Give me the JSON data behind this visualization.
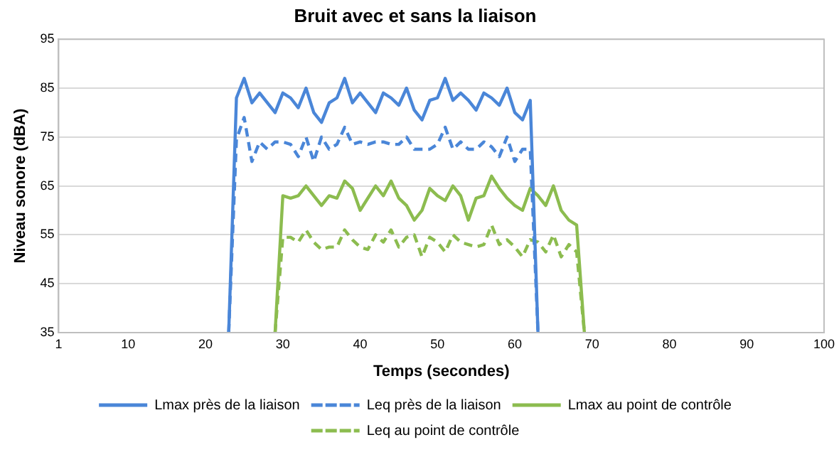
{
  "chart_data": {
    "type": "line",
    "title": "Bruit avec et sans la liaison",
    "xlabel": "Temps (secondes)",
    "ylabel": "Niveau sonore (dBA)",
    "xlim": [
      1,
      100
    ],
    "xticks": [
      1,
      10,
      20,
      30,
      40,
      50,
      60,
      70,
      80,
      90,
      100
    ],
    "ylim": [
      35,
      95
    ],
    "yticks": [
      35,
      45,
      55,
      65,
      75,
      85,
      95
    ],
    "grid": "y",
    "legend": "bottom",
    "marker": "none",
    "series": [
      {
        "name": "Lmax près de la liaison",
        "color": "#4a86d8",
        "line_style": "solid",
        "x": [
          23,
          24,
          25,
          26,
          27,
          28,
          29,
          30,
          31,
          32,
          33,
          34,
          35,
          36,
          37,
          38,
          39,
          40,
          41,
          42,
          43,
          44,
          45,
          46,
          47,
          48,
          49,
          50,
          51,
          52,
          53,
          54,
          55,
          56,
          57,
          58,
          59,
          60,
          61,
          62,
          63
        ],
        "values": [
          35,
          83,
          87,
          82,
          84,
          82,
          80,
          84,
          83,
          81,
          85,
          80,
          78,
          82,
          83,
          87,
          82,
          84,
          82,
          80,
          84,
          83,
          81.5,
          85,
          80.5,
          78.5,
          82.5,
          83,
          87,
          82.5,
          84,
          82.5,
          80.5,
          84,
          83,
          81.5,
          85,
          80,
          78.5,
          82.5,
          35
        ]
      },
      {
        "name": "Leq près de la liaison",
        "color": "#4a86d8",
        "line_style": "dashed",
        "x": [
          23,
          24,
          25,
          26,
          27,
          28,
          29,
          30,
          31,
          32,
          33,
          34,
          35,
          36,
          37,
          38,
          39,
          40,
          41,
          42,
          43,
          44,
          45,
          46,
          47,
          48,
          49,
          50,
          51,
          52,
          53,
          54,
          55,
          56,
          57,
          58,
          59,
          60,
          61,
          62,
          63
        ],
        "values": [
          35,
          74.5,
          79,
          70,
          74,
          72.5,
          74,
          74,
          73.5,
          71,
          75,
          70,
          75,
          72.5,
          73.5,
          77,
          73.5,
          74,
          73.5,
          74,
          74,
          73.5,
          73.5,
          75,
          72.5,
          72.5,
          72.5,
          73.5,
          77,
          72.5,
          74,
          72.5,
          72.5,
          74,
          73,
          71,
          75,
          70,
          72.5,
          72.5,
          35
        ]
      },
      {
        "name": "Lmax au point de contrôle",
        "color": "#8cbc4f",
        "line_style": "solid",
        "x": [
          29,
          30,
          31,
          32,
          33,
          34,
          35,
          36,
          37,
          38,
          39,
          40,
          41,
          42,
          43,
          44,
          45,
          46,
          47,
          48,
          49,
          50,
          51,
          52,
          53,
          54,
          55,
          56,
          57,
          58,
          59,
          60,
          61,
          62,
          63,
          64,
          65,
          66,
          67,
          68,
          69
        ],
        "values": [
          35,
          63,
          62.5,
          63,
          65,
          63,
          61,
          63,
          62.5,
          66,
          64.5,
          60,
          62.5,
          65,
          63,
          66,
          62.5,
          61,
          58,
          60,
          64.5,
          63,
          62,
          65,
          63,
          58,
          62.5,
          63,
          67,
          64.5,
          62.5,
          61,
          60,
          64.5,
          63,
          61,
          65,
          60,
          58,
          57,
          35
        ]
      },
      {
        "name": "Leq au point de contrôle",
        "color": "#8cbc4f",
        "line_style": "dashed",
        "x": [
          29,
          30,
          31,
          32,
          33,
          34,
          35,
          36,
          37,
          38,
          39,
          40,
          41,
          42,
          43,
          44,
          45,
          46,
          47,
          48,
          49,
          50,
          51,
          52,
          53,
          54,
          55,
          56,
          57,
          58,
          59,
          60,
          61,
          62,
          63,
          64,
          65,
          66,
          67,
          68,
          69
        ],
        "values": [
          35,
          54.5,
          54.5,
          53.5,
          56,
          53.5,
          52,
          52.5,
          52.5,
          56,
          54,
          52.5,
          52,
          55,
          53.5,
          56,
          52.5,
          54.5,
          55,
          50.5,
          54.5,
          53.5,
          51.5,
          55,
          53.5,
          53,
          52.5,
          53,
          57,
          53,
          54,
          52.5,
          50.5,
          54,
          53.5,
          51.5,
          55,
          50.5,
          53,
          51.5,
          35
        ]
      }
    ]
  }
}
